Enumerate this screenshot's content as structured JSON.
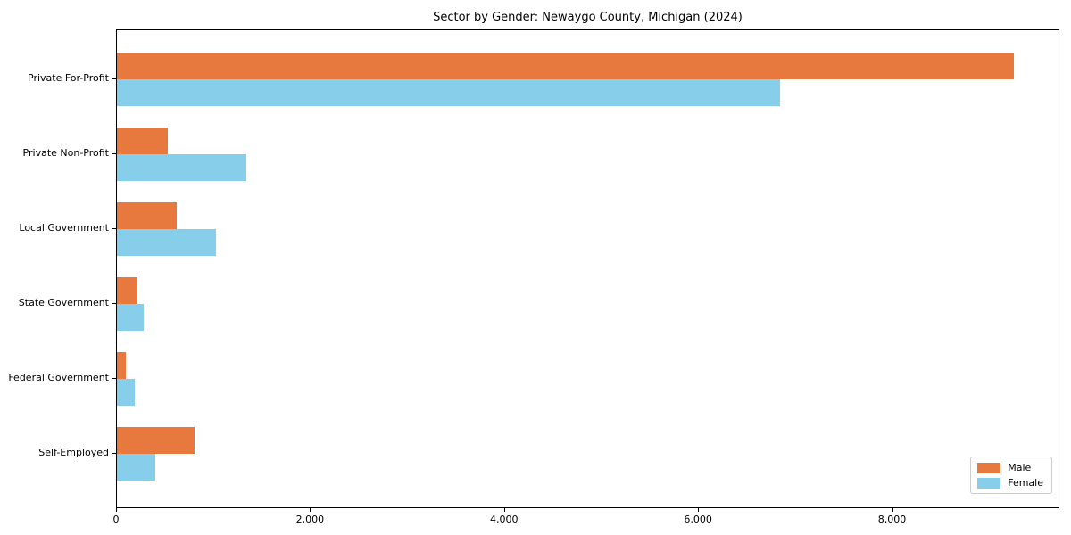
{
  "chart_data": {
    "type": "bar",
    "orientation": "horizontal",
    "title": "Sector by Gender: Newaygo County, Michigan (2024)",
    "categories": [
      "Private For-Profit",
      "Private Non-Profit",
      "Local Government",
      "State Government",
      "Federal Government",
      "Self-Employed"
    ],
    "series": [
      {
        "name": "Male",
        "color": "#e8793e",
        "values": [
          9260,
          530,
          620,
          215,
          90,
          800
        ]
      },
      {
        "name": "Female",
        "color": "#87ceeb",
        "values": [
          6850,
          1340,
          1020,
          275,
          180,
          395
        ]
      }
    ],
    "xlabel": "",
    "ylabel": "",
    "xlim": [
      0,
      9725
    ],
    "xticks": [
      0,
      2000,
      4000,
      6000,
      8000
    ],
    "xtick_labels": [
      "0",
      "2,000",
      "4,000",
      "6,000",
      "8,000"
    ],
    "legend": {
      "position": "lower right",
      "entries": [
        {
          "label": "Male",
          "color": "#e8793e"
        },
        {
          "label": "Female",
          "color": "#87ceeb"
        }
      ]
    },
    "grid": false,
    "background": "#ffffff"
  }
}
